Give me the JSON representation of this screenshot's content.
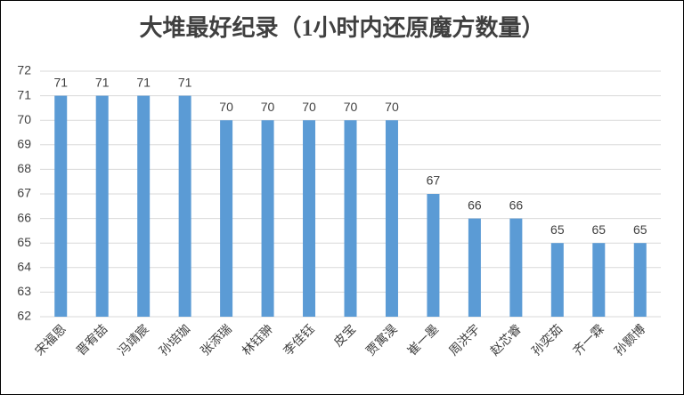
{
  "chart_data": {
    "type": "bar",
    "title": "大堆最好纪录（1小时内还原魔方数量）",
    "categories": [
      "宋福恩",
      "晋宥喆",
      "冯靖宸",
      "孙培珈",
      "张添瑞",
      "林钰翀",
      "李佳钰",
      "皮宝",
      "贾寓淏",
      "崔一墨",
      "周洪宇",
      "赵芯睿",
      "孙奕茹",
      "齐一霖",
      "孙颢博"
    ],
    "values": [
      71,
      71,
      71,
      71,
      70,
      70,
      70,
      70,
      70,
      67,
      66,
      66,
      65,
      65,
      65
    ],
    "color": "#5b9bd5",
    "ylim": [
      62,
      72
    ],
    "yticks": [
      62,
      63,
      64,
      65,
      66,
      67,
      68,
      69,
      70,
      71,
      72
    ],
    "grid": true
  }
}
